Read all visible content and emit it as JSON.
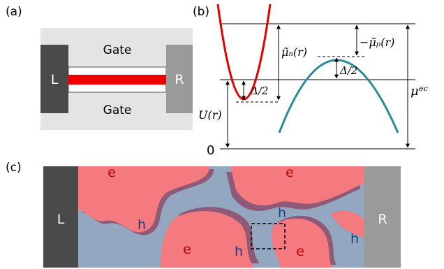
{
  "panels": {
    "a": {
      "label": "(a)",
      "gate_top": "Gate",
      "gate_bottom": "Gate",
      "lead_left": "L",
      "lead_right": "R"
    },
    "b": {
      "label": "(b)",
      "mu_n": "μ̃ₙ(r)",
      "mu_p": "−μ̃ₚ(r)",
      "delta_half_top": "Δ/2",
      "delta_half_bottom": "Δ/2",
      "U": "U(r)",
      "mu_ec": "μᵉᶜ",
      "zero": "0"
    },
    "c": {
      "label": "(c)",
      "lead_left": "L",
      "lead_right": "R",
      "puddle_labels": [
        "e",
        "e",
        "h",
        "h",
        "e",
        "h",
        "e",
        "h"
      ]
    }
  },
  "colors": {
    "electron_band": "#e00000",
    "hole_band": "#2a8a9a",
    "electron_puddle": "#f47a80",
    "hole_puddle": "#93a8c0",
    "overlap": "#8e5a78",
    "lead_left": "#4a4a4a",
    "lead_right": "#9a9a9a",
    "gate_bg": "#e4e4e4",
    "e_text": "#c00000",
    "h_text": "#1f3f78"
  }
}
